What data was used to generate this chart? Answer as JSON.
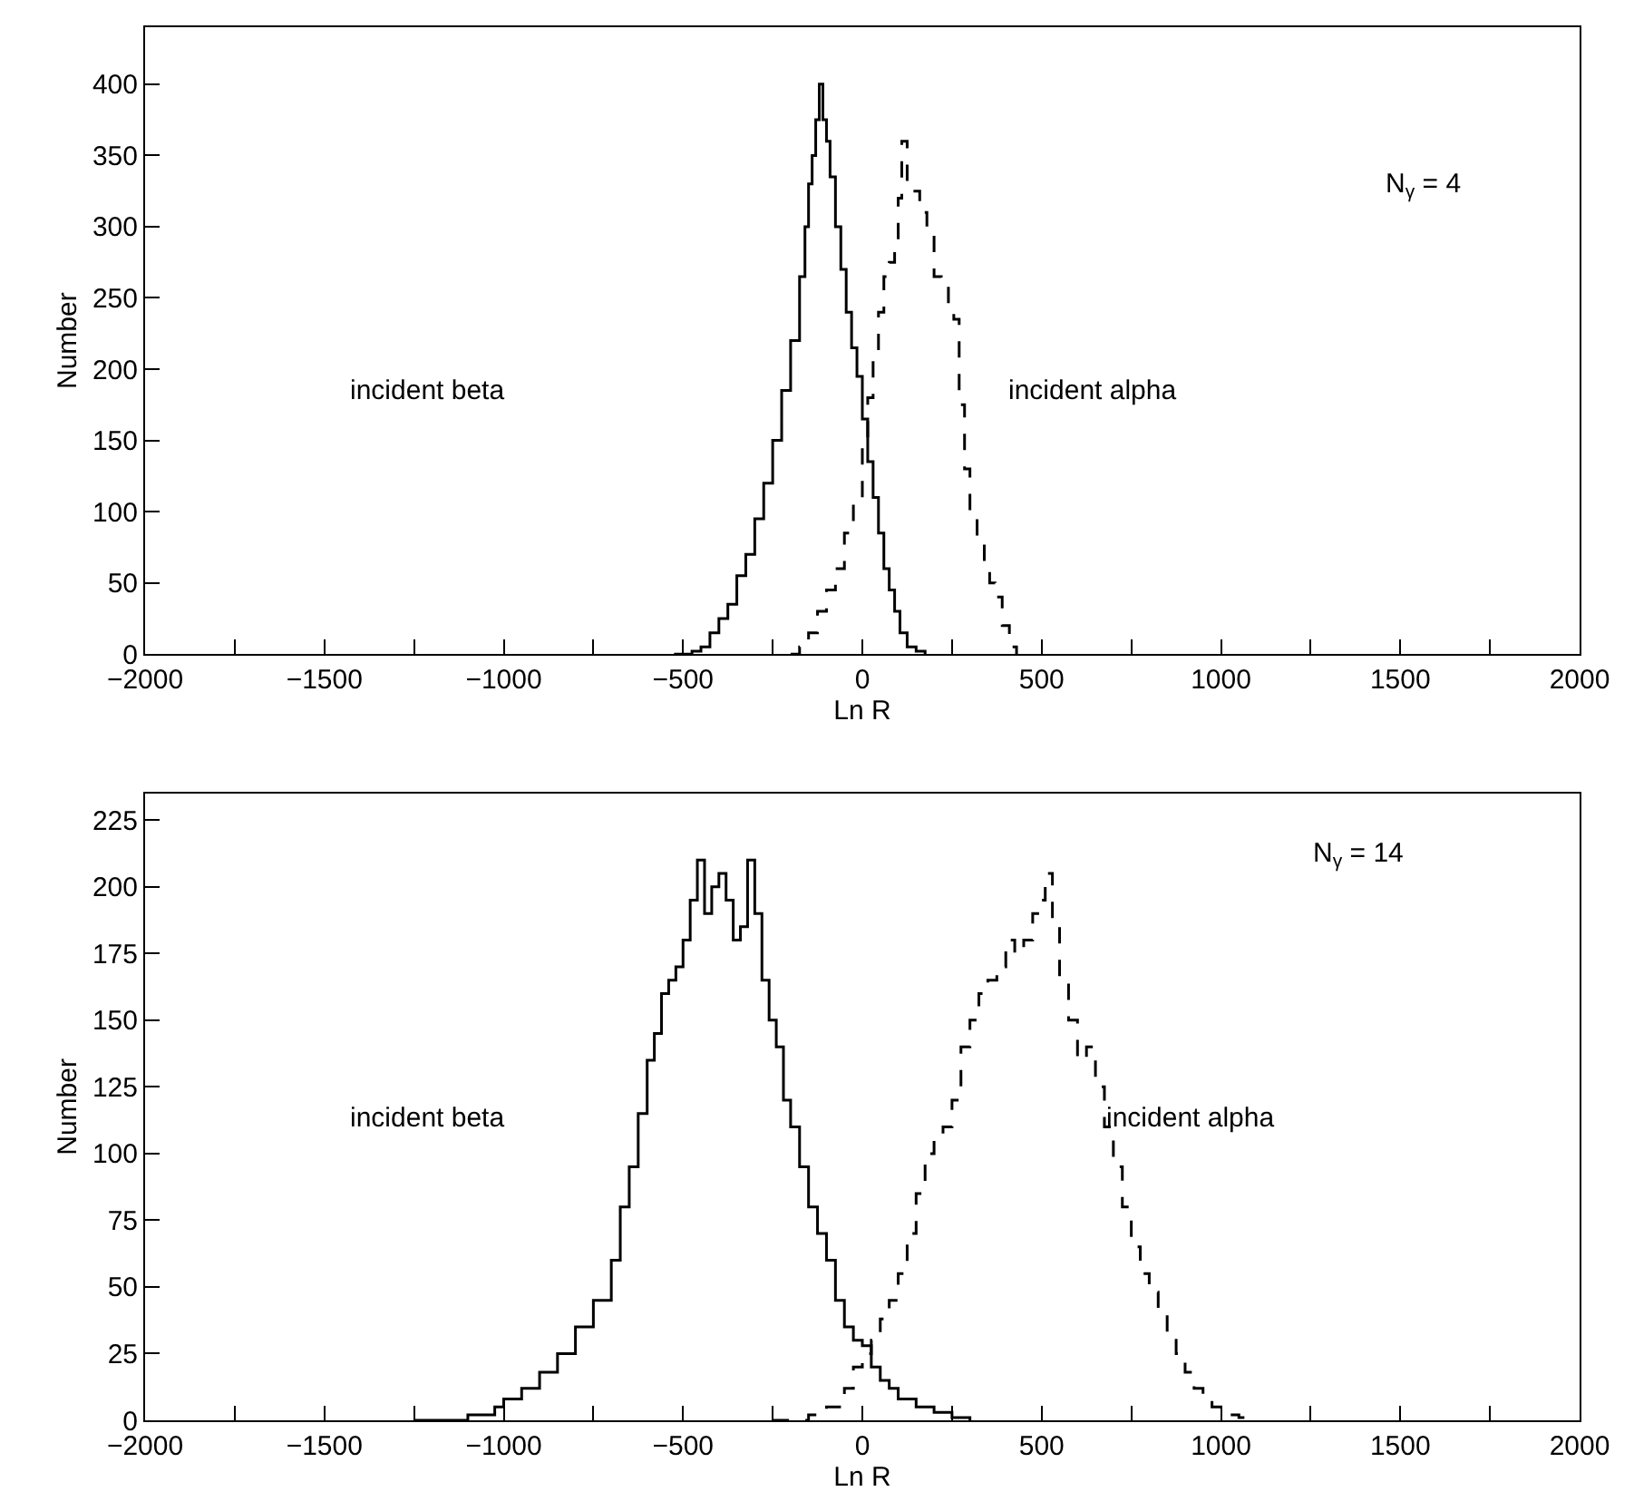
{
  "chart_data": [
    {
      "type": "step",
      "xlabel": "Ln R",
      "ylabel": "Number",
      "xlim": [
        -2000,
        2000
      ],
      "ylim": [
        0,
        440
      ],
      "xticks": [
        -2000,
        {
          "value": -1750,
          "label": null
        },
        -1500,
        {
          "value": -1250,
          "label": null
        },
        -1000,
        {
          "value": -750,
          "label": null
        },
        -500,
        {
          "value": -250,
          "label": null
        },
        0,
        {
          "value": 250,
          "label": null
        },
        500,
        {
          "value": 750,
          "label": null
        },
        1000,
        {
          "value": 1250,
          "label": null
        },
        1500,
        {
          "value": 1750,
          "label": null
        },
        2000
      ],
      "yticks": [
        0,
        50,
        100,
        150,
        200,
        250,
        300,
        350,
        400
      ],
      "annotations": [
        "incident beta",
        "incident alpha",
        "N$_{γ}$ = 4"
      ],
      "series": [
        {
          "color": "#000000",
          "line_style": "solid",
          "x": [
            -525,
            -475,
            -450,
            -425,
            -400,
            -375,
            -350,
            -325,
            -300,
            -275,
            -250,
            -225,
            -200,
            -175,
            -160,
            -150,
            -140,
            -130,
            -120,
            -110,
            -100,
            -90,
            -75,
            -60,
            -45,
            -30,
            -15,
            0,
            15,
            30,
            45,
            60,
            75,
            90,
            105,
            125,
            150,
            175
          ],
          "values": [
            0,
            2,
            5,
            15,
            25,
            35,
            55,
            70,
            95,
            120,
            150,
            185,
            220,
            265,
            300,
            330,
            350,
            375,
            400,
            375,
            360,
            335,
            300,
            270,
            240,
            215,
            195,
            165,
            135,
            110,
            85,
            60,
            45,
            30,
            15,
            5,
            2,
            0
          ]
        },
        {
          "color": "#000000",
          "line_style": "dashed",
          "x": [
            -200,
            -175,
            -150,
            -125,
            -100,
            -75,
            -50,
            -25,
            0,
            15,
            30,
            45,
            60,
            75,
            90,
            100,
            110,
            125,
            140,
            160,
            180,
            200,
            220,
            240,
            255,
            270,
            285,
            300,
            320,
            340,
            355,
            370,
            390,
            410,
            430
          ],
          "values": [
            0,
            5,
            15,
            30,
            45,
            60,
            85,
            110,
            150,
            180,
            210,
            240,
            265,
            275,
            285,
            320,
            360,
            330,
            325,
            310,
            295,
            265,
            260,
            245,
            235,
            175,
            130,
            100,
            80,
            60,
            50,
            40,
            20,
            5,
            0
          ]
        }
      ]
    },
    {
      "type": "step",
      "xlabel": "Ln R",
      "ylabel": "Number",
      "xlim": [
        -2000,
        2000
      ],
      "ylim": [
        0,
        235
      ],
      "xticks": [
        -2000,
        {
          "value": -1750,
          "label": null
        },
        -1500,
        {
          "value": -1250,
          "label": null
        },
        -1000,
        {
          "value": -750,
          "label": null
        },
        -500,
        {
          "value": -250,
          "label": null
        },
        0,
        {
          "value": 250,
          "label": null
        },
        500,
        {
          "value": 750,
          "label": null
        },
        1000,
        {
          "value": 1250,
          "label": null
        },
        1500,
        {
          "value": 1750,
          "label": null
        },
        2000
      ],
      "yticks": [
        0,
        25,
        50,
        75,
        100,
        125,
        150,
        175,
        200,
        225
      ],
      "annotations": [
        "incident beta",
        "incident alpha",
        "N$_{γ}$ = 14"
      ],
      "series": [
        {
          "color": "#000000",
          "line_style": "solid",
          "x": [
            -1250,
            -1100,
            -1025,
            -1000,
            -950,
            -900,
            -850,
            -800,
            -750,
            -700,
            -675,
            -650,
            -625,
            -600,
            -580,
            -560,
            -540,
            -520,
            -500,
            -480,
            -460,
            -440,
            -420,
            -400,
            -380,
            -360,
            -340,
            -320,
            -300,
            -280,
            -260,
            -240,
            -220,
            -200,
            -175,
            -150,
            -125,
            -100,
            -75,
            -50,
            -25,
            0,
            25,
            50,
            75,
            100,
            150,
            200,
            250,
            300
          ],
          "values": [
            0,
            2,
            5,
            8,
            12,
            18,
            25,
            35,
            45,
            60,
            80,
            95,
            115,
            135,
            145,
            160,
            165,
            170,
            180,
            195,
            210,
            190,
            200,
            205,
            195,
            180,
            185,
            210,
            190,
            165,
            150,
            140,
            120,
            110,
            95,
            80,
            70,
            60,
            45,
            35,
            30,
            28,
            20,
            15,
            12,
            8,
            5,
            3,
            1,
            0
          ]
        },
        {
          "color": "#000000",
          "line_style": "dashed",
          "x": [
            -250,
            -150,
            -100,
            -50,
            -25,
            0,
            25,
            50,
            75,
            100,
            125,
            150,
            175,
            200,
            225,
            250,
            275,
            300,
            325,
            350,
            375,
            400,
            425,
            450,
            475,
            500,
            510,
            530,
            550,
            575,
            600,
            625,
            650,
            675,
            700,
            725,
            750,
            775,
            800,
            825,
            850,
            875,
            900,
            925,
            950,
            975,
            1000,
            1050,
            1100
          ],
          "values": [
            0,
            2,
            5,
            12,
            20,
            25,
            30,
            38,
            45,
            55,
            70,
            85,
            100,
            105,
            110,
            120,
            140,
            150,
            160,
            165,
            170,
            180,
            175,
            180,
            190,
            195,
            205,
            185,
            165,
            150,
            135,
            140,
            125,
            110,
            95,
            80,
            65,
            55,
            48,
            40,
            30,
            25,
            18,
            12,
            8,
            5,
            2,
            1,
            0
          ]
        }
      ]
    }
  ]
}
